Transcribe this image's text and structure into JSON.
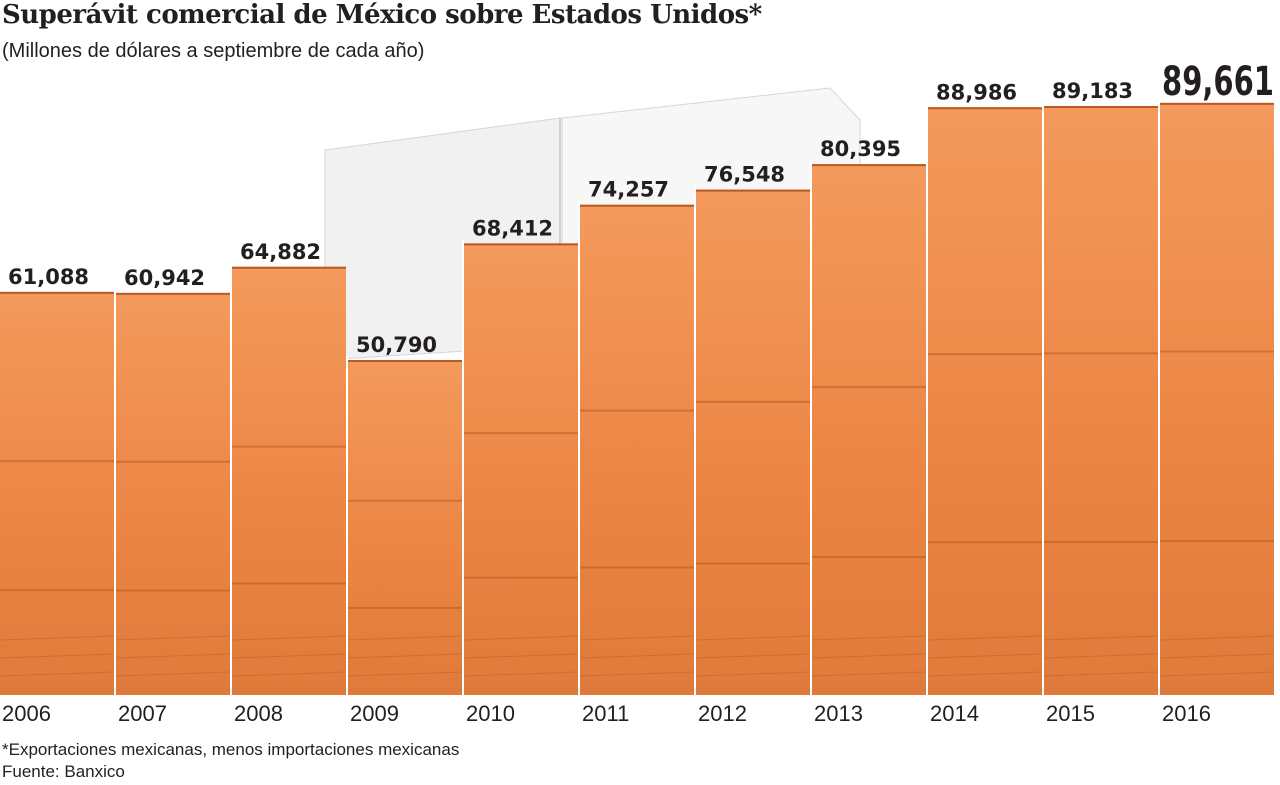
{
  "chart_data": {
    "type": "bar",
    "title": "Superávit comercial de México sobre Estados Unidos*",
    "subtitle": "(Millones de dólares a septiembre de cada año)",
    "categories": [
      "2006",
      "2007",
      "2008",
      "2009",
      "2010",
      "2011",
      "2012",
      "2013",
      "2014",
      "2015",
      "2016"
    ],
    "values": [
      61088,
      60942,
      64882,
      50790,
      68412,
      74257,
      76548,
      80395,
      88986,
      89183,
      89661
    ],
    "value_labels": [
      "61,088",
      "60,942",
      "64,882",
      "50,790",
      "68,412",
      "74,257",
      "76,548",
      "80,395",
      "88,986",
      "89,183",
      "89,661"
    ],
    "highlight_index": 10,
    "xlabel": "",
    "ylabel": "",
    "grid": false,
    "legend": "none",
    "colors": {
      "bar": "#ef8c4b",
      "bar_dark": "#b85a22",
      "text": "#231f20",
      "separator": "#ffffff"
    }
  },
  "footnote": "*Exportaciones mexicanas, menos importaciones mexicanas",
  "source": "Fuente: Banxico"
}
